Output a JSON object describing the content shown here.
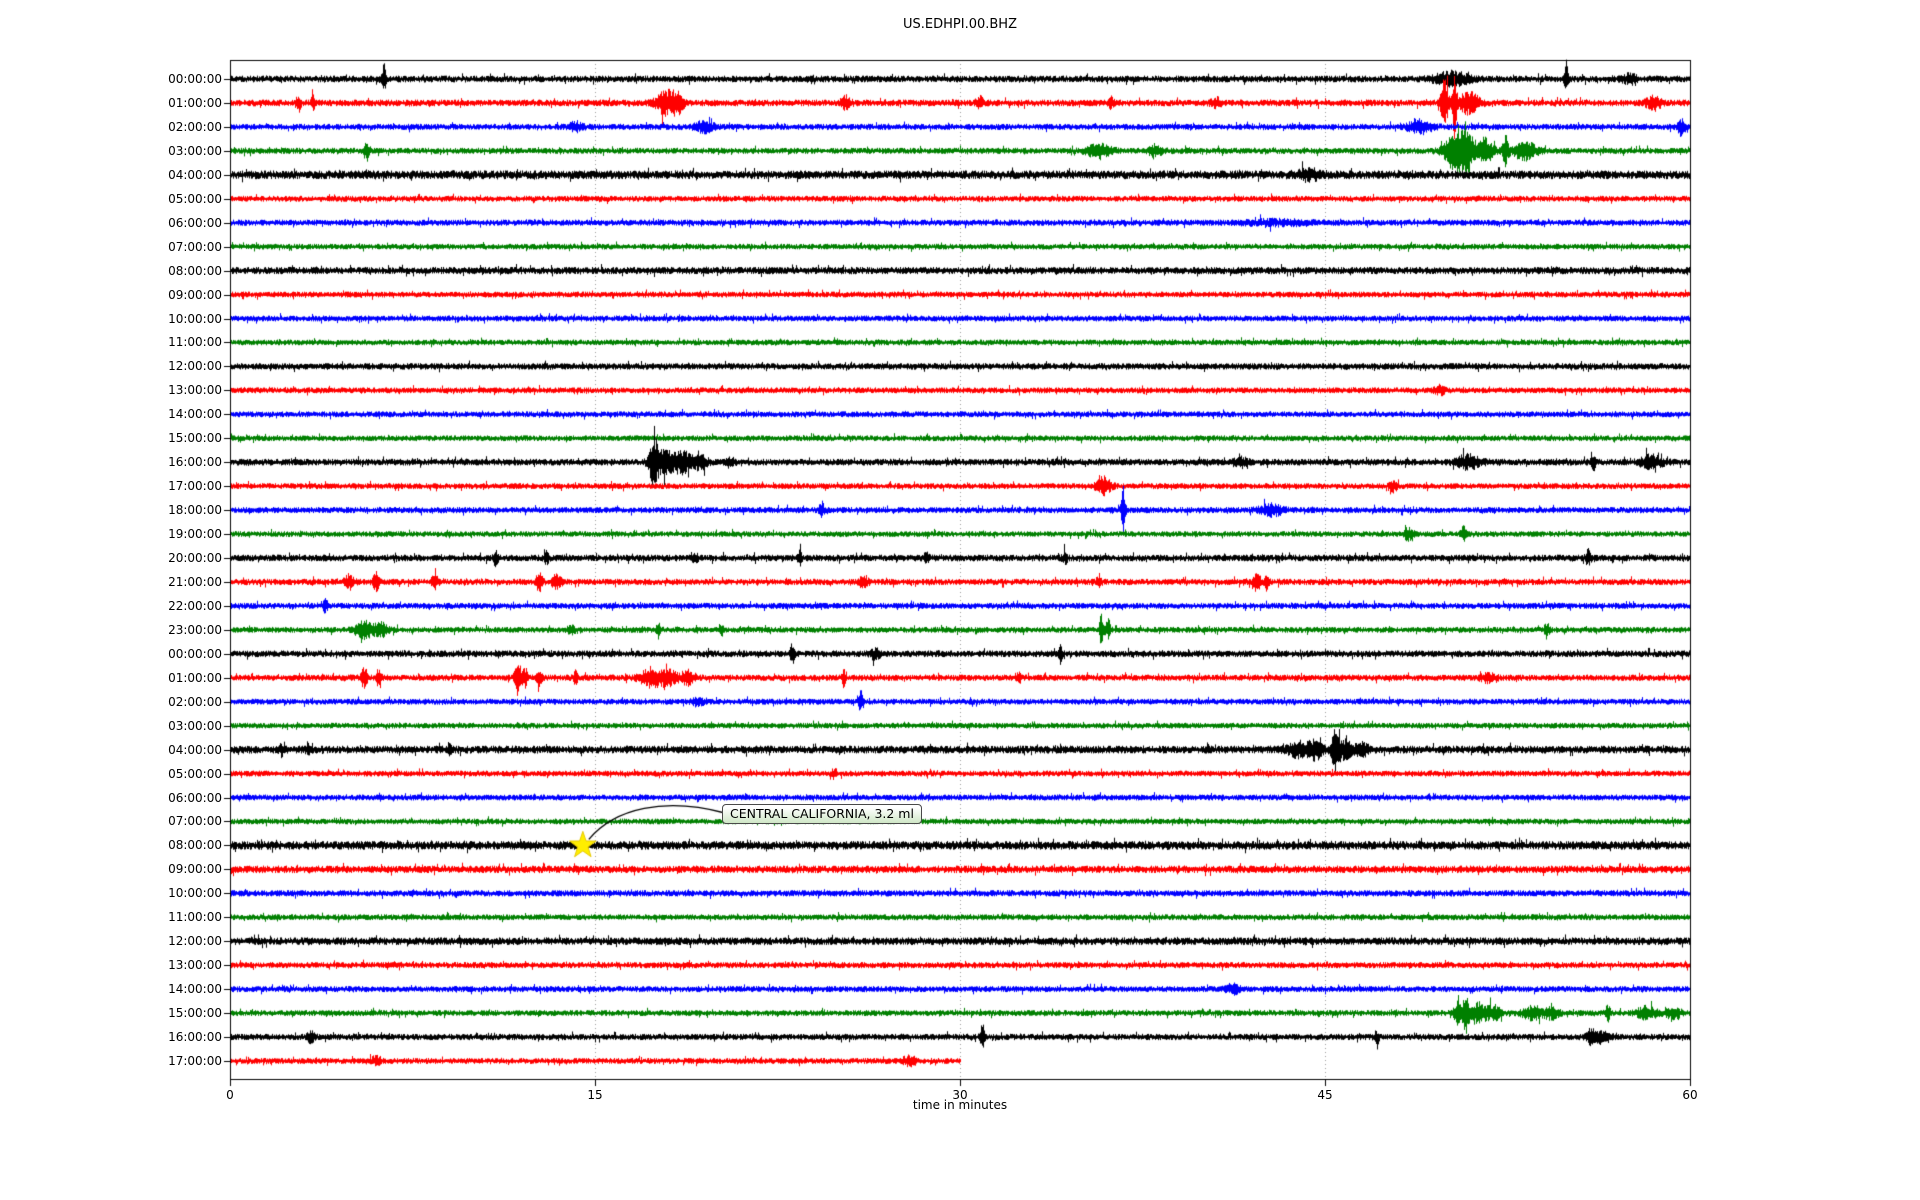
{
  "title": "US.EDHPI.00.BHZ",
  "xlabel": "time in minutes",
  "annotation": {
    "text": "CENTRAL CALIFORNIA, 3.2 ml",
    "star_row_label": "08:00:00",
    "star_row_index": 32,
    "star_minute": 14.5,
    "star_color": "#ffee00",
    "marker": "star-icon"
  },
  "chart_data": {
    "type": "seismogram-dayplot",
    "station": "US.EDHPI.00.BHZ",
    "x_ticks": [
      0,
      15,
      30,
      45,
      60
    ],
    "x_range_minutes": [
      0,
      60
    ],
    "grid_minutes": [
      15,
      30,
      45
    ],
    "grid_on": true,
    "trace_colors": {
      "black": "#000000",
      "red": "#ff0000",
      "blue": "#0000ff",
      "green": "#008000"
    },
    "rows": [
      {
        "label": "00:00:00",
        "color": "black",
        "noise": 3.4,
        "end": 60,
        "events": [
          [
            6.3,
            15,
            0.08
          ],
          [
            50.2,
            6,
            0.7
          ],
          [
            54.9,
            14,
            0.09
          ],
          [
            57.5,
            4,
            0.3
          ]
        ]
      },
      {
        "label": "01:00:00",
        "color": "red",
        "noise": 3.4,
        "end": 60,
        "events": [
          [
            2.8,
            8,
            0.1
          ],
          [
            3.4,
            7,
            0.08
          ],
          [
            17.9,
            11,
            0.4
          ],
          [
            18.4,
            8,
            0.25
          ],
          [
            25.3,
            6,
            0.2
          ],
          [
            30.8,
            5,
            0.15
          ],
          [
            36.2,
            5,
            0.1
          ],
          [
            40.5,
            4,
            0.2
          ],
          [
            49.9,
            24,
            0.15
          ],
          [
            50.3,
            32,
            0.09
          ],
          [
            50.9,
            10,
            0.4
          ],
          [
            58.5,
            6,
            0.3
          ]
        ]
      },
      {
        "label": "02:00:00",
        "color": "blue",
        "noise": 3.1,
        "end": 60,
        "events": [
          [
            14.2,
            4,
            0.3
          ],
          [
            19.5,
            5,
            0.4
          ],
          [
            48.9,
            6,
            0.5
          ],
          [
            59.6,
            7,
            0.15
          ]
        ]
      },
      {
        "label": "03:00:00",
        "color": "green",
        "noise": 3.1,
        "end": 60,
        "events": [
          [
            5.6,
            9,
            0.12
          ],
          [
            35.7,
            7,
            0.5
          ],
          [
            38.0,
            5,
            0.3
          ],
          [
            50.3,
            18,
            0.4
          ],
          [
            50.8,
            22,
            0.25
          ],
          [
            51.5,
            12,
            0.4
          ],
          [
            52.4,
            15,
            0.12
          ],
          [
            53.2,
            8,
            0.5
          ]
        ]
      },
      {
        "label": "04:00:00",
        "color": "black",
        "noise": 4.4,
        "end": 60,
        "events": [
          [
            44.3,
            4,
            0.5
          ]
        ]
      },
      {
        "label": "05:00:00",
        "color": "red",
        "noise": 3.0,
        "end": 60,
        "events": []
      },
      {
        "label": "06:00:00",
        "color": "blue",
        "noise": 3.1,
        "end": 60,
        "events": [
          [
            43.0,
            2,
            1.5
          ]
        ]
      },
      {
        "label": "07:00:00",
        "color": "green",
        "noise": 2.9,
        "end": 60,
        "events": []
      },
      {
        "label": "08:00:00",
        "color": "black",
        "noise": 3.7,
        "end": 60,
        "events": []
      },
      {
        "label": "09:00:00",
        "color": "red",
        "noise": 3.0,
        "end": 60,
        "events": []
      },
      {
        "label": "10:00:00",
        "color": "blue",
        "noise": 3.0,
        "end": 60,
        "events": []
      },
      {
        "label": "11:00:00",
        "color": "green",
        "noise": 2.9,
        "end": 60,
        "events": []
      },
      {
        "label": "12:00:00",
        "color": "black",
        "noise": 3.3,
        "end": 60,
        "events": []
      },
      {
        "label": "13:00:00",
        "color": "red",
        "noise": 3.0,
        "end": 60,
        "events": [
          [
            49.7,
            4,
            0.2
          ]
        ]
      },
      {
        "label": "14:00:00",
        "color": "blue",
        "noise": 3.0,
        "end": 60,
        "events": []
      },
      {
        "label": "15:00:00",
        "color": "green",
        "noise": 2.9,
        "end": 60,
        "events": []
      },
      {
        "label": "16:00:00",
        "color": "black",
        "noise": 3.4,
        "end": 60,
        "events": [
          [
            17.4,
            21,
            0.2
          ],
          [
            17.9,
            10,
            0.45
          ],
          [
            18.6,
            9,
            0.35
          ],
          [
            19.3,
            6,
            0.3
          ],
          [
            20.5,
            5,
            0.15
          ],
          [
            41.5,
            4,
            0.3
          ],
          [
            50.9,
            6,
            0.5
          ],
          [
            56.0,
            8,
            0.1
          ],
          [
            58.4,
            6,
            0.45
          ]
        ]
      },
      {
        "label": "17:00:00",
        "color": "red",
        "noise": 3.0,
        "end": 60,
        "events": [
          [
            35.9,
            8,
            0.3
          ],
          [
            47.8,
            5,
            0.15
          ]
        ]
      },
      {
        "label": "18:00:00",
        "color": "blue",
        "noise": 3.1,
        "end": 60,
        "events": [
          [
            24.3,
            7,
            0.1
          ],
          [
            36.7,
            24,
            0.09
          ],
          [
            42.8,
            5,
            0.5
          ]
        ]
      },
      {
        "label": "19:00:00",
        "color": "green",
        "noise": 2.9,
        "end": 60,
        "events": [
          [
            48.4,
            5,
            0.2
          ],
          [
            50.7,
            7,
            0.12
          ]
        ]
      },
      {
        "label": "20:00:00",
        "color": "black",
        "noise": 3.4,
        "end": 60,
        "events": [
          [
            10.9,
            6,
            0.1
          ],
          [
            13.0,
            5,
            0.1
          ],
          [
            19.1,
            5,
            0.1
          ],
          [
            23.4,
            6,
            0.1
          ],
          [
            28.6,
            5,
            0.1
          ],
          [
            34.3,
            5,
            0.1
          ],
          [
            55.8,
            7,
            0.1
          ]
        ]
      },
      {
        "label": "21:00:00",
        "color": "red",
        "noise": 3.2,
        "end": 60,
        "events": [
          [
            4.9,
            6,
            0.2
          ],
          [
            6.0,
            8,
            0.15
          ],
          [
            8.4,
            6,
            0.15
          ],
          [
            12.7,
            11,
            0.12
          ],
          [
            13.4,
            6,
            0.2
          ],
          [
            26.0,
            5,
            0.2
          ],
          [
            35.7,
            6,
            0.1
          ],
          [
            42.2,
            9,
            0.15
          ],
          [
            42.6,
            7,
            0.1
          ]
        ]
      },
      {
        "label": "22:00:00",
        "color": "blue",
        "noise": 3.1,
        "end": 60,
        "events": [
          [
            3.9,
            6,
            0.1
          ]
        ]
      },
      {
        "label": "23:00:00",
        "color": "green",
        "noise": 3.0,
        "end": 60,
        "events": [
          [
            5.5,
            9,
            0.35
          ],
          [
            6.2,
            6,
            0.3
          ],
          [
            14.0,
            5,
            0.15
          ],
          [
            17.6,
            5,
            0.1
          ],
          [
            20.2,
            4,
            0.1
          ],
          [
            35.8,
            15,
            0.09
          ],
          [
            36.1,
            12,
            0.08
          ],
          [
            54.1,
            6,
            0.1
          ]
        ]
      },
      {
        "label": "00:00:00",
        "color": "black",
        "noise": 3.4,
        "end": 60,
        "events": [
          [
            23.1,
            9,
            0.09
          ],
          [
            26.5,
            4,
            0.2
          ],
          [
            34.1,
            8,
            0.08
          ]
        ]
      },
      {
        "label": "01:00:00",
        "color": "red",
        "noise": 3.2,
        "end": 60,
        "events": [
          [
            5.5,
            11,
            0.12
          ],
          [
            6.1,
            8,
            0.1
          ],
          [
            11.8,
            15,
            0.12
          ],
          [
            12.1,
            10,
            0.1
          ],
          [
            12.7,
            8,
            0.1
          ],
          [
            14.2,
            6,
            0.1
          ],
          [
            17.3,
            8,
            0.45
          ],
          [
            18.0,
            7,
            0.35
          ],
          [
            18.8,
            6,
            0.3
          ],
          [
            25.2,
            8,
            0.08
          ],
          [
            32.4,
            6,
            0.08
          ],
          [
            51.7,
            4,
            0.3
          ]
        ]
      },
      {
        "label": "02:00:00",
        "color": "blue",
        "noise": 3.0,
        "end": 60,
        "events": [
          [
            19.2,
            4,
            0.2
          ],
          [
            25.9,
            10,
            0.08
          ]
        ]
      },
      {
        "label": "03:00:00",
        "color": "green",
        "noise": 2.9,
        "end": 60,
        "events": []
      },
      {
        "label": "04:00:00",
        "color": "black",
        "noise": 4.0,
        "end": 60,
        "events": [
          [
            2.1,
            5,
            0.08
          ],
          [
            3.2,
            4,
            0.1
          ],
          [
            9.0,
            5,
            0.08
          ],
          [
            43.9,
            6,
            0.45
          ],
          [
            44.6,
            8,
            0.3
          ],
          [
            45.4,
            17,
            0.15
          ],
          [
            45.8,
            8,
            0.3
          ],
          [
            46.5,
            5,
            0.3
          ]
        ]
      },
      {
        "label": "05:00:00",
        "color": "red",
        "noise": 3.0,
        "end": 60,
        "events": [
          [
            24.8,
            4,
            0.1
          ]
        ]
      },
      {
        "label": "06:00:00",
        "color": "blue",
        "noise": 3.0,
        "end": 60,
        "events": []
      },
      {
        "label": "07:00:00",
        "color": "green",
        "noise": 2.9,
        "end": 60,
        "events": []
      },
      {
        "label": "08:00:00",
        "color": "black",
        "noise": 4.4,
        "end": 60,
        "events": []
      },
      {
        "label": "09:00:00",
        "color": "red",
        "noise": 3.8,
        "end": 60,
        "events": []
      },
      {
        "label": "10:00:00",
        "color": "blue",
        "noise": 3.2,
        "end": 60,
        "events": []
      },
      {
        "label": "11:00:00",
        "color": "green",
        "noise": 3.0,
        "end": 60,
        "events": []
      },
      {
        "label": "12:00:00",
        "color": "black",
        "noise": 3.9,
        "end": 60,
        "events": []
      },
      {
        "label": "13:00:00",
        "color": "red",
        "noise": 3.1,
        "end": 60,
        "events": []
      },
      {
        "label": "14:00:00",
        "color": "blue",
        "noise": 3.1,
        "end": 60,
        "events": [
          [
            41.2,
            4,
            0.3
          ]
        ]
      },
      {
        "label": "15:00:00",
        "color": "green",
        "noise": 3.0,
        "end": 60,
        "events": [
          [
            50.5,
            12,
            0.2
          ],
          [
            50.8,
            17,
            0.12
          ],
          [
            51.3,
            9,
            0.3
          ],
          [
            51.9,
            7,
            0.3
          ],
          [
            53.5,
            6,
            0.4
          ],
          [
            54.3,
            5,
            0.3
          ],
          [
            56.6,
            8,
            0.1
          ],
          [
            58.2,
            6,
            0.4
          ],
          [
            59.3,
            5,
            0.3
          ]
        ]
      },
      {
        "label": "16:00:00",
        "color": "black",
        "noise": 3.2,
        "end": 60,
        "events": [
          [
            3.3,
            5,
            0.15
          ],
          [
            30.9,
            13,
            0.09
          ],
          [
            47.1,
            5,
            0.1
          ],
          [
            55.9,
            6,
            0.2
          ],
          [
            56.3,
            5,
            0.3
          ]
        ]
      },
      {
        "label": "17:00:00",
        "color": "red",
        "noise": 3.0,
        "end": 30,
        "events": [
          [
            6.0,
            4,
            0.2
          ],
          [
            27.9,
            4,
            0.3
          ]
        ]
      }
    ]
  }
}
